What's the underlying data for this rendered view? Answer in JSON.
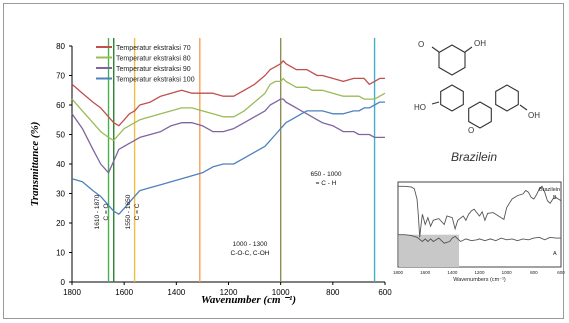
{
  "chart_data": [
    {
      "type": "line",
      "title": "",
      "xlabel": "Wavenumber (cm ⁻¹)",
      "ylabel": "Transmittance (%)",
      "xlim": [
        1800,
        600
      ],
      "ylim": [
        0,
        80
      ],
      "x_reversed": true,
      "x_ticks": [
        "1800",
        "1600",
        "1400",
        "1200",
        "1000",
        "800",
        "600"
      ],
      "y_ticks": [
        "0",
        "10",
        "20",
        "30",
        "40",
        "50",
        "60",
        "70",
        "80"
      ],
      "legend_position": "top-left",
      "series": [
        {
          "name": "Temperatur ekstraksi 70",
          "color": "#c0504d",
          "x": [
            1800,
            1760,
            1720,
            1690,
            1660,
            1640,
            1620,
            1600,
            1580,
            1560,
            1540,
            1500,
            1460,
            1420,
            1380,
            1340,
            1300,
            1260,
            1220,
            1180,
            1140,
            1100,
            1060,
            1040,
            1020,
            1000,
            990,
            980,
            960,
            940,
            920,
            900,
            880,
            860,
            840,
            800,
            760,
            720,
            700,
            680,
            660,
            640,
            620,
            600
          ],
          "y": [
            67,
            64,
            61,
            59,
            56,
            54,
            53,
            55,
            57,
            58,
            60,
            61,
            63,
            64,
            65,
            64,
            64,
            64,
            63,
            63,
            65,
            67,
            70,
            72,
            73,
            74,
            75,
            74,
            73,
            72,
            72,
            72,
            71,
            70,
            70,
            69,
            68,
            69,
            69,
            69,
            67,
            68,
            69,
            69
          ]
        },
        {
          "name": "Temperatur ekstraksi 80",
          "color": "#9bbb59",
          "x": [
            1800,
            1760,
            1720,
            1690,
            1660,
            1640,
            1620,
            1600,
            1580,
            1560,
            1540,
            1500,
            1460,
            1420,
            1380,
            1340,
            1300,
            1260,
            1220,
            1180,
            1140,
            1100,
            1060,
            1040,
            1020,
            1000,
            990,
            980,
            960,
            940,
            920,
            900,
            880,
            860,
            840,
            800,
            760,
            720,
            700,
            680,
            660,
            640,
            620,
            600
          ],
          "y": [
            62,
            58,
            54,
            51,
            49,
            48,
            50,
            52,
            53,
            54,
            55,
            56,
            57,
            58,
            59,
            59,
            58,
            57,
            56,
            56,
            58,
            61,
            64,
            67,
            68,
            68,
            69,
            68,
            67,
            66,
            66,
            66,
            65,
            65,
            65,
            64,
            63,
            63,
            63,
            62,
            62,
            62,
            63,
            64
          ]
        },
        {
          "name": "Temperatur ekstraksi 90",
          "color": "#8064a2",
          "x": [
            1800,
            1760,
            1720,
            1690,
            1660,
            1640,
            1620,
            1600,
            1580,
            1560,
            1540,
            1500,
            1460,
            1420,
            1380,
            1340,
            1300,
            1260,
            1220,
            1180,
            1140,
            1100,
            1060,
            1040,
            1020,
            1000,
            990,
            980,
            960,
            940,
            920,
            900,
            880,
            860,
            840,
            800,
            760,
            720,
            700,
            680,
            660,
            640,
            620,
            600
          ],
          "y": [
            57,
            52,
            45,
            40,
            37,
            41,
            45,
            46,
            47,
            48,
            49,
            50,
            51,
            53,
            54,
            54,
            53,
            51,
            51,
            52,
            54,
            56,
            58,
            60,
            61,
            62,
            62,
            61,
            60,
            59,
            58,
            57,
            56,
            55,
            54,
            53,
            51,
            51,
            50,
            50,
            50,
            49,
            49,
            49
          ]
        },
        {
          "name": "Temperatur ekstraksi 100",
          "color": "#4f81bd",
          "x": [
            1800,
            1760,
            1720,
            1690,
            1660,
            1640,
            1620,
            1600,
            1580,
            1560,
            1540,
            1500,
            1460,
            1420,
            1380,
            1340,
            1300,
            1260,
            1220,
            1180,
            1140,
            1100,
            1060,
            1040,
            1020,
            1000,
            990,
            980,
            960,
            940,
            920,
            900,
            880,
            860,
            840,
            800,
            760,
            720,
            700,
            680,
            660,
            640,
            620,
            600
          ],
          "y": [
            35,
            34,
            31,
            29,
            26,
            24,
            23,
            25,
            27,
            29,
            31,
            32,
            33,
            34,
            35,
            36,
            37,
            39,
            40,
            40,
            42,
            44,
            46,
            48,
            50,
            52,
            53,
            54,
            55,
            56,
            57,
            58,
            58,
            58,
            58,
            57,
            57,
            58,
            58,
            59,
            59,
            60,
            61,
            61
          ]
        }
      ],
      "reference_lines": [
        {
          "x": 1660,
          "color": "#4caf50"
        },
        {
          "x": 1640,
          "color": "#2e7d32"
        },
        {
          "x": 1560,
          "color": "#f0c040"
        },
        {
          "x": 1310,
          "color": "#f5a05a"
        },
        {
          "x": 1000,
          "color": "#8d8d5a"
        },
        {
          "x": 640,
          "color": "#3fb0c8"
        }
      ],
      "annotations": [
        {
          "lines": [
            "1610 - 1870",
            "C = O"
          ],
          "x": 1686
        },
        {
          "lines": [
            "1550 - 1650",
            "C = C"
          ],
          "x": 1596
        },
        {
          "lines": [
            "1000 - 1300",
            "C-O-C, C-OH"
          ]
        },
        {
          "lines": [
            "650 - 1000",
            "= C - H"
          ]
        }
      ]
    },
    {
      "type": "line",
      "xlabel": "Wavenumbers (cm⁻¹)",
      "xlim": [
        1800,
        600
      ],
      "x_ticks": [
        "1800",
        "1600",
        "1400",
        "1200",
        "1000",
        "800",
        "600"
      ],
      "series": [
        {
          "name": "Brazilein",
          "label": "B",
          "color": "#555555",
          "x": [
            1800,
            1750,
            1700,
            1680,
            1660,
            1650,
            1640,
            1630,
            1620,
            1600,
            1580,
            1560,
            1540,
            1500,
            1460,
            1440,
            1400,
            1380,
            1360,
            1320,
            1300,
            1280,
            1260,
            1240,
            1200,
            1180,
            1160,
            1140,
            1100,
            1060,
            1020,
            1000,
            960,
            920,
            880,
            860,
            840,
            820,
            800,
            780,
            760,
            740,
            720,
            700,
            680,
            660,
            640,
            620,
            600
          ],
          "y": [
            95,
            95,
            94,
            92,
            80,
            60,
            35,
            50,
            62,
            50,
            58,
            48,
            55,
            57,
            50,
            60,
            58,
            45,
            55,
            60,
            55,
            62,
            66,
            68,
            60,
            65,
            55,
            63,
            64,
            60,
            56,
            70,
            80,
            84,
            86,
            90,
            88,
            82,
            80,
            85,
            92,
            95,
            88,
            78,
            75,
            80,
            82,
            80,
            78
          ]
        },
        {
          "label": "A",
          "color": "#555555",
          "x": [
            1800,
            1750,
            1700,
            1660,
            1620,
            1600,
            1580,
            1560,
            1540,
            1500,
            1460,
            1420,
            1400,
            1380,
            1340,
            1300,
            1260,
            1220,
            1200,
            1160,
            1120,
            1080,
            1040,
            1000,
            960,
            920,
            880,
            840,
            800,
            760,
            720,
            680,
            640,
            600
          ],
          "y": [
            38,
            38,
            37,
            35,
            30,
            33,
            30,
            33,
            30,
            34,
            28,
            30,
            34,
            36,
            30,
            33,
            31,
            32,
            33,
            31,
            33,
            31,
            34,
            32,
            33,
            31,
            33,
            32,
            34,
            35,
            32,
            35,
            34,
            34
          ]
        }
      ]
    }
  ],
  "structure": {
    "name": "Brazilein",
    "atoms": [
      "O",
      "OH",
      "HO",
      "O",
      "OH"
    ]
  }
}
